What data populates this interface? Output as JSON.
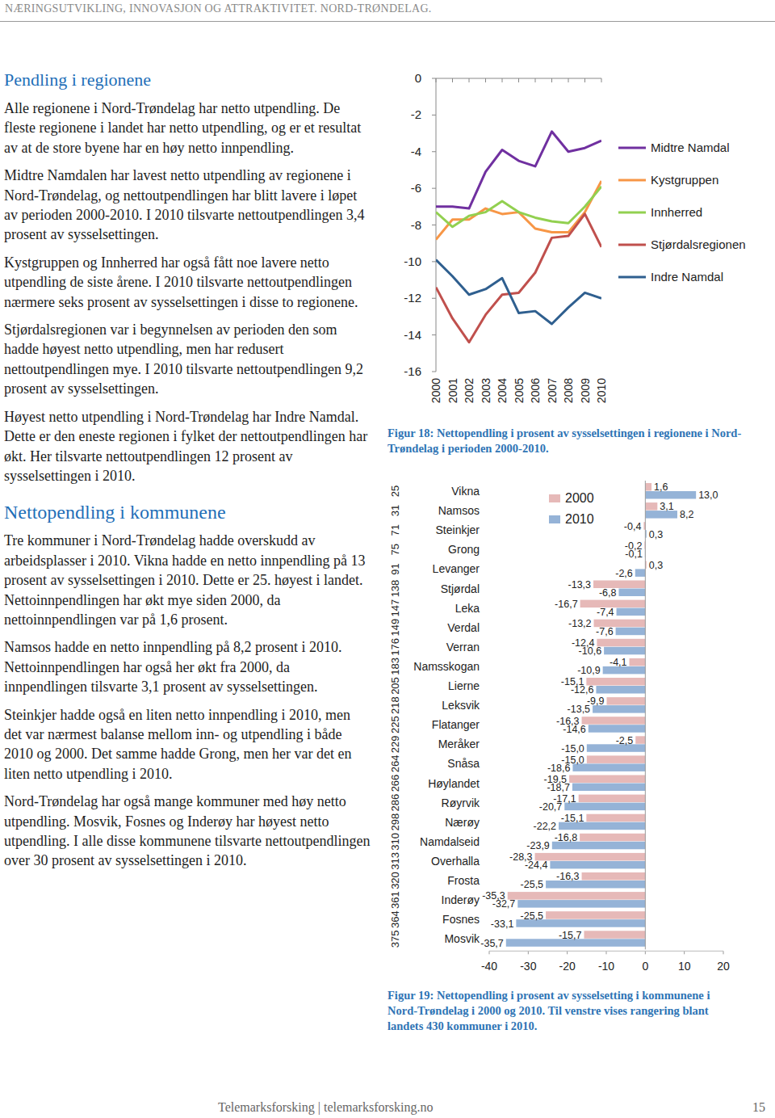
{
  "header": {
    "running_title": "NÆRINGSUTVIKLING, INNOVASJON OG ATTRAKTIVITET. NORD-TRØNDELAG.",
    "footer": "Telemarksforsking | telemarksforsking.no",
    "page_number": "15"
  },
  "sections": [
    {
      "heading": "Pendling i regionene",
      "paragraphs": [
        "Alle regionene i Nord-Trøndelag har netto utpendling. De fleste regionene i landet har netto utpendling, og er et resultat av at de store byene har en høy netto innpendling.",
        "Midtre Namdalen har lavest netto utpendling av regionene i Nord-Trøndelag, og nettoutpendlingen har blitt lavere i løpet av perioden 2000-2010. I 2010 tilsvarte nettoutpendlingen 3,4 prosent av sysselsettingen.",
        "Kystgruppen og Innherred har også fått noe lavere netto utpendling de siste årene. I 2010 tilsvarte nettoutpendlingen nærmere seks prosent av sysselsettingen i disse to regionene.",
        "Stjørdalsregionen var i begynnelsen av perioden den som hadde høyest netto utpendling, men har redusert nettoutpendlingen mye. I 2010 tilsvarte nettoutpendlingen 9,2 prosent av sysselsettingen.",
        "Høyest netto utpendling i Nord-Trøndelag har Indre Namdal. Dette er den eneste regionen i fylket der nettoutpendlingen har økt. Her tilsvarte nettoutpendlingen 12 prosent av sysselsettingen i 2010."
      ]
    },
    {
      "heading": "Nettopendling i kommunene",
      "paragraphs": [
        "Tre kommuner i Nord-Trøndelag hadde overskudd av arbeidsplasser i 2010. Vikna hadde en netto innpendling på 13 prosent av sysselsettingen i 2010. Dette er 25. høyest i landet. Nettoinnpendlingen har økt mye siden 2000, da nettoinnpendlingen var på 1,6 prosent.",
        "Namsos hadde en netto innpendling på 8,2 prosent i 2010. Nettoinnpendlingen har også her økt fra 2000, da innpendlingen tilsvarte 3,1 prosent av sysselsettingen.",
        "Steinkjer hadde også en liten netto innpendling i 2010, men det var nærmest balanse mellom inn- og utpendling i både 2010 og 2000. Det samme hadde Grong, men her var det en liten netto utpendling i 2010.",
        "Nord-Trøndelag har også mange kommuner med høy netto utpendling. Mosvik, Fosnes og Inderøy har høyest netto utpendling. I alle disse kommunene tilsvarte nettoutpendlingen over 30 prosent av sysselsettingen i 2010."
      ]
    }
  ],
  "chart_data": [
    {
      "type": "line",
      "caption": "Figur 18: Nettopendling i prosent av sysselsettingen i regionene i Nord-Trøndelag i perioden 2000-2010.",
      "x": [
        2000,
        2001,
        2002,
        2003,
        2004,
        2005,
        2006,
        2007,
        2008,
        2009,
        2010
      ],
      "xlim": [
        2000,
        2010
      ],
      "xticks": [
        2000,
        2001,
        2002,
        2003,
        2004,
        2005,
        2006,
        2007,
        2008,
        2009,
        2010
      ],
      "ylim": [
        -16,
        0
      ],
      "yticks": [
        0,
        -2,
        -4,
        -6,
        -8,
        -10,
        -12,
        -14,
        -16
      ],
      "grid": false,
      "legend": "right",
      "series": [
        {
          "name": "Midtre Namdal",
          "color": "#7030a0",
          "values": [
            -7.0,
            -7.0,
            -7.1,
            -5.1,
            -3.9,
            -4.5,
            -4.8,
            -2.9,
            -4.0,
            -3.8,
            -3.4
          ]
        },
        {
          "name": "Kystgruppen",
          "color": "#f79646",
          "values": [
            -8.8,
            -7.7,
            -7.7,
            -7.1,
            -7.4,
            -7.3,
            -8.2,
            -8.4,
            -8.4,
            -7.3,
            -5.6
          ]
        },
        {
          "name": "Innherred",
          "color": "#92d050",
          "values": [
            -7.3,
            -8.1,
            -7.5,
            -7.3,
            -6.7,
            -7.3,
            -7.6,
            -7.8,
            -7.9,
            -7.0,
            -5.9
          ]
        },
        {
          "name": "Stjørdalsregionen",
          "color": "#c0504d",
          "values": [
            -11.4,
            -13.1,
            -14.4,
            -12.9,
            -11.8,
            -11.7,
            -10.6,
            -8.7,
            -8.6,
            -7.4,
            -9.2
          ]
        },
        {
          "name": "Indre Namdal",
          "color": "#2f5f8f",
          "values": [
            -9.9,
            -10.8,
            -11.8,
            -11.5,
            -10.9,
            -12.8,
            -12.7,
            -13.4,
            -12.5,
            -11.7,
            -12.0
          ]
        }
      ]
    },
    {
      "type": "bar",
      "orientation": "horizontal",
      "caption": "Figur 19: Nettopendling i prosent av sysselsetting i kommunene i Nord-Trøndelag i 2000 og 2010. Til venstre vises rangering blant landets 430 kommuner i 2010.",
      "categories": [
        "Vikna",
        "Namsos",
        "Steinkjer",
        "Grong",
        "Levanger",
        "Stjørdal",
        "Leka",
        "Verdal",
        "Verran",
        "Namsskogan",
        "Lierne",
        "Leksvik",
        "Flatanger",
        "Meråker",
        "Snåsa",
        "Høylandet",
        "Røyrvik",
        "Nærøy",
        "Namdalseid",
        "Overhalla",
        "Frosta",
        "Inderøy",
        "Fosnes",
        "Mosvik"
      ],
      "ranks": [
        25,
        31,
        71,
        75,
        91,
        138,
        147,
        149,
        176,
        183,
        205,
        218,
        225,
        229,
        264,
        266,
        286,
        298,
        310,
        313,
        320,
        361,
        364,
        375
      ],
      "xlim": [
        -40,
        20
      ],
      "xticks": [
        -40,
        -30,
        -20,
        -10,
        0,
        10,
        20
      ],
      "grid": false,
      "legend": "top",
      "data_labels": true,
      "series": [
        {
          "name": "2000",
          "color": "#e6b9b8",
          "values": [
            1.6,
            3.1,
            -0.4,
            -0.2,
            0.3,
            -13.3,
            -16.7,
            -13.2,
            -12.4,
            -4.1,
            -15.1,
            -9.9,
            -16.3,
            -2.5,
            -15.0,
            -19.5,
            -17.1,
            -15.1,
            -16.8,
            -28.3,
            -16.3,
            -35.3,
            -25.5,
            -15.7
          ],
          "value_labels": [
            "1,6",
            "3,1",
            "-0,4",
            "-0,2",
            "0,3",
            "-13,3",
            "-16,7",
            "-13,2",
            "-12,4",
            "-4,1",
            "-15,1",
            "-9,9",
            "-16,3",
            "-2,5",
            "-15,0",
            "-19,5",
            "-17,1",
            "-15,1",
            "-16,8",
            "-28,3",
            "-16,3",
            "-35,3",
            "-25,5",
            "-15,7"
          ]
        },
        {
          "name": "2010",
          "color": "#95b3d7",
          "values": [
            13.0,
            8.2,
            0.3,
            -0.1,
            -2.6,
            -6.8,
            -7.4,
            -7.6,
            -10.6,
            -10.9,
            -12.6,
            -13.5,
            -14.6,
            -15.0,
            -18.6,
            -18.7,
            -20.7,
            -22.2,
            -23.9,
            -24.4,
            -25.5,
            -32.7,
            -33.1,
            -35.7
          ],
          "value_labels": [
            "13,0",
            "8,2",
            "0,3",
            "-0,1",
            "-2,6",
            "-6,8",
            "-7,4",
            "-7,6",
            "-10,6",
            "-10,9",
            "-12,6",
            "-13,5",
            "-14,6",
            "-15,0",
            "-18,6",
            "-18,7",
            "-20,7",
            "-22,2",
            "-23,9",
            "-24,4",
            "-25,5",
            "-32,7",
            "-33,1",
            "-35,7"
          ]
        }
      ]
    }
  ]
}
